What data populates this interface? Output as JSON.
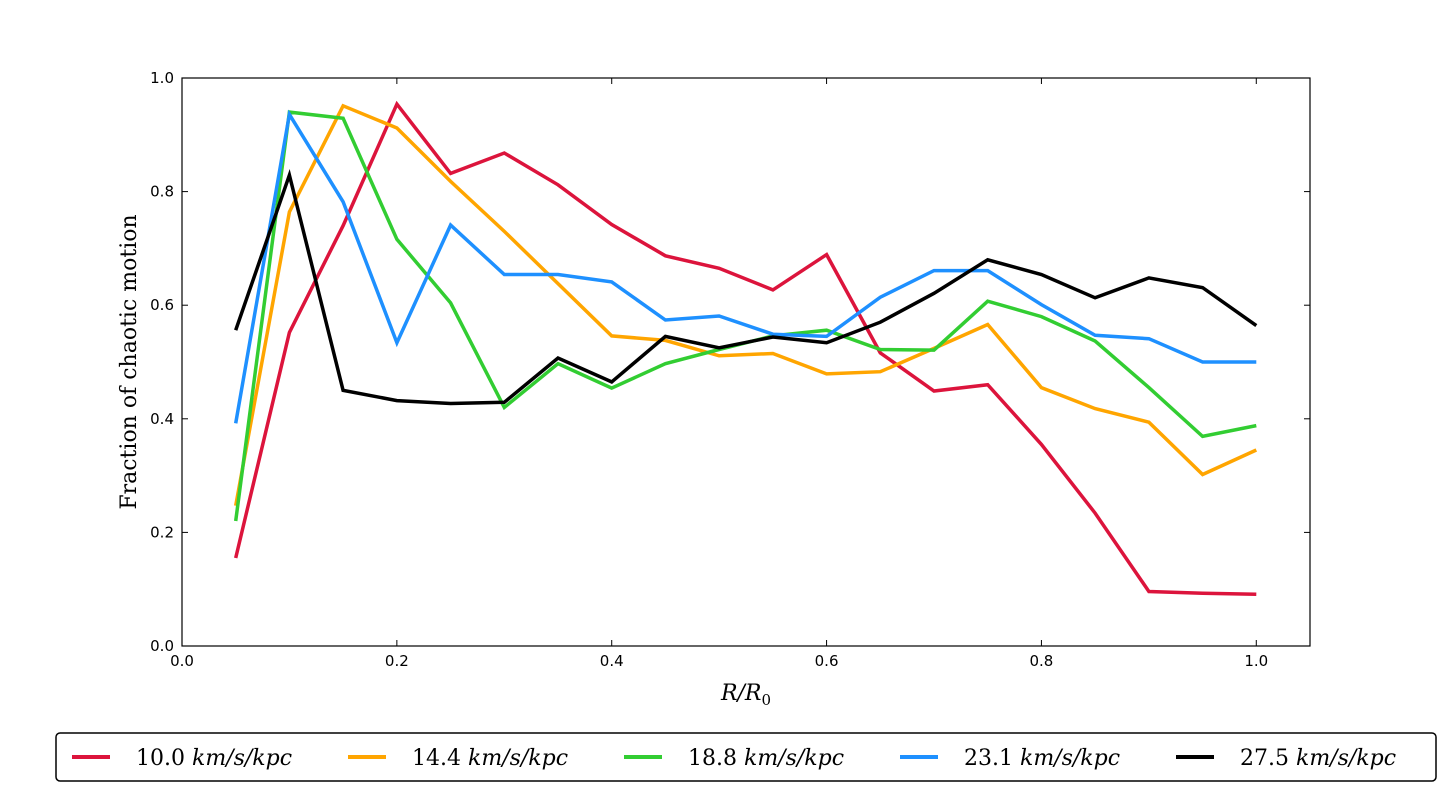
{
  "chart_data": {
    "type": "line",
    "xlabel": "R/R0",
    "ylabel": "Fraction of chaotic motion",
    "xlim": [
      0.0,
      1.05
    ],
    "ylim": [
      0.0,
      1.0
    ],
    "xticks": [
      "0.0",
      "0.2",
      "0.4",
      "0.6",
      "0.8",
      "1.0"
    ],
    "yticks": [
      "0.0",
      "0.2",
      "0.4",
      "0.6",
      "0.8",
      "1.0"
    ],
    "grid": false,
    "legend_position": "bottom",
    "x": [
      0.05,
      0.1,
      0.15,
      0.2,
      0.25,
      0.3,
      0.35,
      0.4,
      0.45,
      0.5,
      0.55,
      0.6,
      0.65,
      0.7,
      0.75,
      0.8,
      0.85,
      0.9,
      0.95,
      1.0
    ],
    "series": [
      {
        "name": "10.0 km/s/kpc",
        "color": "#dc143c",
        "values": [
          0.155,
          0.552,
          0.74,
          0.954,
          0.832,
          0.868,
          0.812,
          0.742,
          0.687,
          0.665,
          0.627,
          0.689,
          0.516,
          0.449,
          0.46,
          0.355,
          0.234,
          0.096,
          0.093,
          0.091
        ]
      },
      {
        "name": "14.4 km/s/kpc",
        "color": "#ffa500",
        "values": [
          0.247,
          0.764,
          0.951,
          0.912,
          0.818,
          0.73,
          0.638,
          0.546,
          0.538,
          0.511,
          0.515,
          0.479,
          0.483,
          0.524,
          0.566,
          0.455,
          0.418,
          0.394,
          0.302,
          0.345
        ]
      },
      {
        "name": "18.8 km/s/kpc",
        "color": "#32cd32",
        "values": [
          0.22,
          0.94,
          0.929,
          0.716,
          0.604,
          0.42,
          0.497,
          0.454,
          0.497,
          0.522,
          0.546,
          0.556,
          0.522,
          0.521,
          0.607,
          0.58,
          0.537,
          0.455,
          0.369,
          0.388
        ]
      },
      {
        "name": "23.1 km/s/kpc",
        "color": "#1e90ff",
        "values": [
          0.392,
          0.936,
          0.782,
          0.534,
          0.741,
          0.654,
          0.654,
          0.641,
          0.574,
          0.581,
          0.549,
          0.545,
          0.614,
          0.661,
          0.661,
          0.601,
          0.547,
          0.541,
          0.5,
          0.5
        ]
      },
      {
        "name": "27.5 km/s/kpc",
        "color": "#000000",
        "values": [
          0.556,
          0.829,
          0.45,
          0.432,
          0.427,
          0.429,
          0.507,
          0.465,
          0.545,
          0.525,
          0.544,
          0.534,
          0.57,
          0.621,
          0.68,
          0.654,
          0.613,
          0.648,
          0.631,
          0.564
        ]
      }
    ]
  }
}
